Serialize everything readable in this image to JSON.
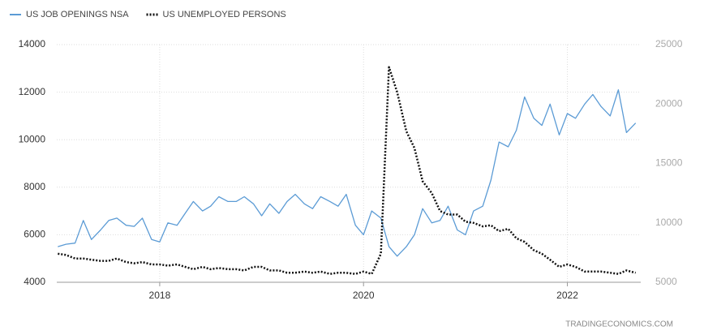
{
  "chart_data": {
    "type": "line",
    "x": [
      2017,
      2017.08,
      2017.17,
      2017.25,
      2017.33,
      2017.42,
      2017.5,
      2017.58,
      2017.67,
      2017.75,
      2017.83,
      2017.92,
      2018,
      2018.08,
      2018.17,
      2018.25,
      2018.33,
      2018.42,
      2018.5,
      2018.58,
      2018.67,
      2018.75,
      2018.83,
      2018.92,
      2019,
      2019.08,
      2019.17,
      2019.25,
      2019.33,
      2019.42,
      2019.5,
      2019.58,
      2019.67,
      2019.75,
      2019.83,
      2019.92,
      2020,
      2020.08,
      2020.17,
      2020.25,
      2020.33,
      2020.42,
      2020.5,
      2020.58,
      2020.67,
      2020.75,
      2020.83,
      2020.92,
      2021,
      2021.08,
      2021.17,
      2021.25,
      2021.33,
      2021.42,
      2021.5,
      2021.58,
      2021.67,
      2021.75,
      2021.83,
      2021.92,
      2022,
      2022.08,
      2022.17,
      2022.25,
      2022.33,
      2022.42,
      2022.5,
      2022.58,
      2022.67
    ],
    "series": [
      {
        "name": "US JOB OPENINGS NSA",
        "color": "#5b9bd5",
        "dash": false,
        "values": [
          5500,
          5600,
          5650,
          6600,
          5800,
          6200,
          6600,
          6700,
          6400,
          6350,
          6700,
          5800,
          5700,
          6500,
          6400,
          6900,
          7400,
          7000,
          7200,
          7600,
          7400,
          7400,
          7600,
          7300,
          6800,
          7300,
          6900,
          7400,
          7700,
          7300,
          7100,
          7600,
          7400,
          7200,
          7700,
          6400,
          6000,
          7000,
          6700,
          5500,
          5100,
          5500,
          6000,
          7100,
          6500,
          6600,
          7200,
          6200,
          6000,
          7000,
          7200,
          8300,
          9900,
          9700,
          10400,
          11800,
          10900,
          10600,
          11500,
          10200,
          11100,
          10900,
          11500,
          11900,
          11400,
          11000,
          12100,
          10300,
          10700
        ]
      },
      {
        "name": "US UNEMPLOYED PERSONS",
        "color": "#111111",
        "dash": true,
        "axis": "y2",
        "values": [
          7400,
          7300,
          7000,
          7000,
          6900,
          6800,
          6800,
          7000,
          6700,
          6600,
          6700,
          6500,
          6500,
          6400,
          6500,
          6300,
          6100,
          6300,
          6100,
          6200,
          6100,
          6100,
          6000,
          6300,
          6300,
          6000,
          6000,
          5800,
          5800,
          5900,
          5800,
          5900,
          5700,
          5800,
          5800,
          5700,
          5900,
          5700,
          7400,
          23100,
          21000,
          17700,
          16300,
          13500,
          12500,
          11000,
          10700,
          10700,
          10100,
          10000,
          9700,
          9800,
          9300,
          9500,
          8700,
          8400,
          7700,
          7400,
          6900,
          6300,
          6500,
          6300,
          5900,
          5900,
          5900,
          5800,
          5700,
          6000,
          5800
        ]
      }
    ],
    "xlim": [
      2016.99,
      2022.72
    ],
    "xticks": [
      2018,
      2020,
      2022
    ],
    "ylim": [
      4000,
      14000
    ],
    "yticks": [
      4000,
      6000,
      8000,
      10000,
      12000,
      14000
    ],
    "y2lim": [
      5000,
      25000
    ],
    "y2ticks": [
      5000,
      10000,
      15000,
      20000,
      25000
    ],
    "grid": true,
    "legend": "top-left",
    "source": "TRADINGECONOMICS.COM"
  }
}
